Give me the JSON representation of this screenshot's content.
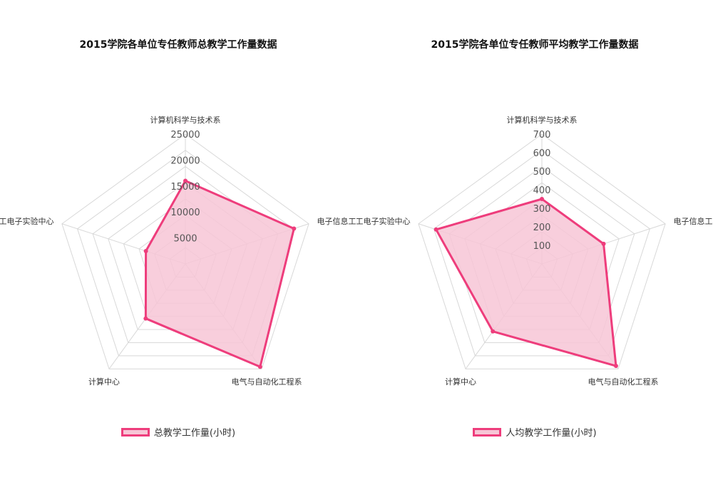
{
  "chart_data": [
    {
      "type": "radar",
      "title": "2015学院各单位专任教师总教学工作量数据",
      "categories": [
        "计算机科学与技术系",
        "电子信息工程系",
        "电气与自动化工程系",
        "计算中心",
        "电工电子实验中心"
      ],
      "ticks": [
        "5000",
        "10000",
        "15000",
        "20000",
        "25000"
      ],
      "range": [
        0,
        25000
      ],
      "grid": true,
      "legend_position": "bottom",
      "series": [
        {
          "name": "总教学工作量(小时)",
          "values": [
            16000,
            22000,
            24500,
            13000,
            8000
          ]
        }
      ]
    },
    {
      "type": "radar",
      "title": "2015学院各单位专任教师平均教学工作量数据",
      "categories": [
        "计算机科学与技术系",
        "电子信息工程系",
        "电气与自动化工程系",
        "计算中心",
        "电工电子实验中心"
      ],
      "ticks": [
        "100",
        "200",
        "300",
        "400",
        "500",
        "600",
        "700"
      ],
      "range": [
        0,
        700
      ],
      "grid": true,
      "legend_position": "bottom",
      "series": [
        {
          "name": "人均教学工作量(小时)",
          "values": [
            350,
            350,
            680,
            450,
            600
          ]
        }
      ]
    }
  ],
  "colors": {
    "stroke": "#ee3d7c",
    "fill": "#f7c6d6",
    "grid": "#d8d8d8"
  }
}
